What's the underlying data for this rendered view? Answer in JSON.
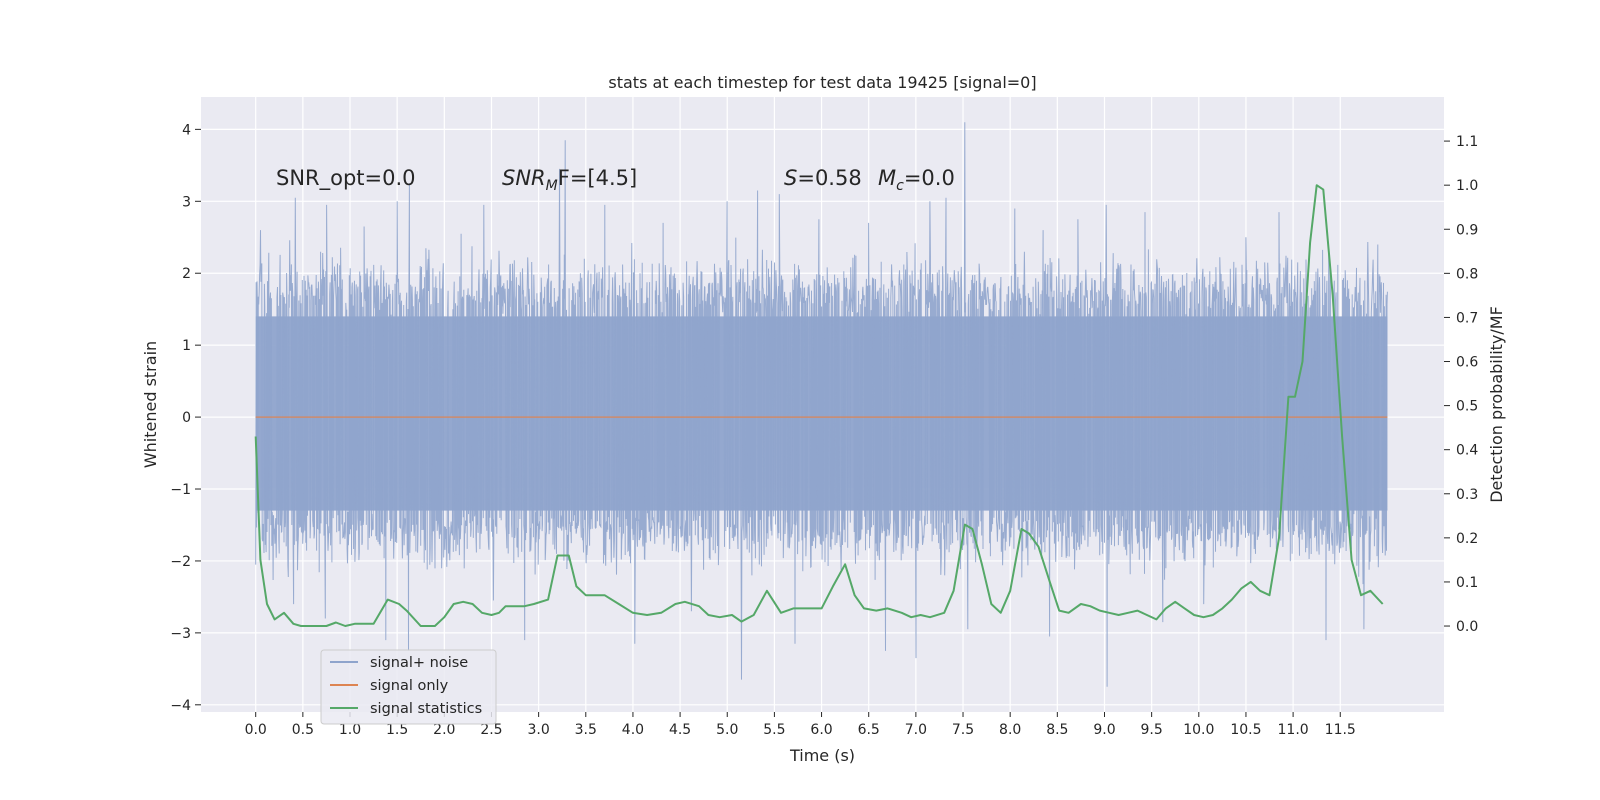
{
  "chart_data": {
    "type": "line",
    "title": "stats at each timestep for test data 19425 [signal=0]",
    "xlabel": "Time (s)",
    "ylabel": "Whitened strain",
    "ylabel_right": "Detection probability/MF",
    "xlim": [
      -0.58,
      12.6
    ],
    "ylim": [
      -4.1,
      4.45
    ],
    "ylim_right": [
      -0.195,
      1.2
    ],
    "x_ticks": [
      0.0,
      0.5,
      1.0,
      1.5,
      2.0,
      2.5,
      3.0,
      3.5,
      4.0,
      4.5,
      5.0,
      5.5,
      6.0,
      6.5,
      7.0,
      7.5,
      8.0,
      8.5,
      9.0,
      9.5,
      10.0,
      10.5,
      11.0,
      11.5
    ],
    "x_tick_labels": [
      "0.0",
      "0.5",
      "1.0",
      "1.5",
      "2.0",
      "2.5",
      "3.0",
      "3.5",
      "4.0",
      "4.5",
      "5.0",
      "5.5",
      "6.0",
      "6.5",
      "7.0",
      "7.5",
      "8.0",
      "8.5",
      "9.0",
      "9.5",
      "10.0",
      "10.5",
      "11.0",
      "11.5"
    ],
    "y_ticks": [
      -4,
      -3,
      -2,
      -1,
      0,
      1,
      2,
      3,
      4
    ],
    "y_tick_labels": [
      "−4",
      "−3",
      "−2",
      "−1",
      "0",
      "1",
      "2",
      "3",
      "4"
    ],
    "y_ticks_right": [
      0.0,
      0.1,
      0.2,
      0.3,
      0.4,
      0.5,
      0.6,
      0.7,
      0.8,
      0.9,
      1.0,
      1.1
    ],
    "y_tick_labels_right": [
      "0.0",
      "0.1",
      "0.2",
      "0.3",
      "0.4",
      "0.5",
      "0.6",
      "0.7",
      "0.8",
      "0.9",
      "1.0",
      "1.1"
    ],
    "grid": true,
    "legend_position": "lower-left",
    "annotations": {
      "snr_opt": "SNR_opt=0.0",
      "snr_mf_main": "SNR",
      "snr_mf_sub": "M",
      "snr_mf_tail": "F=[4.5]",
      "stat_s_main": "S",
      "stat_s_tail": "=0.58",
      "mc_main": "M",
      "mc_sub": "c",
      "mc_tail": "=0.0"
    },
    "series": [
      {
        "name": "signal+ noise",
        "axis": "left",
        "color": "#8fa4cc",
        "style": "dense-noise",
        "x_range": [
          0.0,
          12.0
        ],
        "band": [
          -1.3,
          1.4
        ],
        "spike_peaks": [
          {
            "x": 0.05,
            "y": 2.6
          },
          {
            "x": 0.42,
            "y": 3.05
          },
          {
            "x": 0.75,
            "y": 2.95
          },
          {
            "x": 1.15,
            "y": 2.65
          },
          {
            "x": 1.5,
            "y": 3.0
          },
          {
            "x": 1.63,
            "y": 3.25
          },
          {
            "x": 2.18,
            "y": 2.55
          },
          {
            "x": 2.42,
            "y": 2.95
          },
          {
            "x": 2.85,
            "y": 3.2
          },
          {
            "x": 3.22,
            "y": 3.45
          },
          {
            "x": 3.28,
            "y": 3.85
          },
          {
            "x": 3.7,
            "y": 2.95
          },
          {
            "x": 4.32,
            "y": 2.7
          },
          {
            "x": 5.0,
            "y": 3.0
          },
          {
            "x": 5.32,
            "y": 3.15
          },
          {
            "x": 5.55,
            "y": 3.1
          },
          {
            "x": 5.97,
            "y": 2.75
          },
          {
            "x": 6.5,
            "y": 2.7
          },
          {
            "x": 7.15,
            "y": 3.0
          },
          {
            "x": 7.32,
            "y": 3.05
          },
          {
            "x": 7.52,
            "y": 4.1
          },
          {
            "x": 8.05,
            "y": 2.9
          },
          {
            "x": 8.35,
            "y": 2.6
          },
          {
            "x": 8.72,
            "y": 2.75
          },
          {
            "x": 9.02,
            "y": 2.95
          },
          {
            "x": 9.43,
            "y": 2.85
          },
          {
            "x": 9.62,
            "y": 3.6
          },
          {
            "x": 10.05,
            "y": 2.65
          },
          {
            "x": 10.5,
            "y": 2.5
          },
          {
            "x": 10.85,
            "y": 2.85
          },
          {
            "x": 11.35,
            "y": 2.8
          },
          {
            "x": 11.75,
            "y": 2.95
          },
          {
            "x": 11.9,
            "y": 2.4
          }
        ],
        "trough_peaks": [
          {
            "x": 0.4,
            "y": -2.6
          },
          {
            "x": 0.74,
            "y": -2.8
          },
          {
            "x": 1.38,
            "y": -3.1
          },
          {
            "x": 1.62,
            "y": -3.25
          },
          {
            "x": 2.52,
            "y": -2.55
          },
          {
            "x": 2.85,
            "y": -3.1
          },
          {
            "x": 4.02,
            "y": -3.15
          },
          {
            "x": 4.62,
            "y": -2.7
          },
          {
            "x": 5.15,
            "y": -3.65
          },
          {
            "x": 5.72,
            "y": -3.15
          },
          {
            "x": 6.68,
            "y": -3.25
          },
          {
            "x": 7.0,
            "y": -3.35
          },
          {
            "x": 7.55,
            "y": -2.95
          },
          {
            "x": 8.42,
            "y": -3.05
          },
          {
            "x": 9.03,
            "y": -3.75
          },
          {
            "x": 9.62,
            "y": -2.85
          },
          {
            "x": 10.05,
            "y": -2.6
          },
          {
            "x": 11.35,
            "y": -3.1
          },
          {
            "x": 11.75,
            "y": -2.95
          }
        ]
      },
      {
        "name": "signal only",
        "axis": "left",
        "color": "#dd8452",
        "x": [
          0.0,
          12.0
        ],
        "y": [
          0.0,
          0.0
        ]
      },
      {
        "name": "signal statistics",
        "axis": "right",
        "color": "#55a868",
        "x": [
          0.0,
          0.05,
          0.12,
          0.2,
          0.3,
          0.4,
          0.48,
          0.6,
          0.75,
          0.85,
          0.95,
          1.05,
          1.15,
          1.25,
          1.4,
          1.52,
          1.6,
          1.75,
          1.9,
          2.0,
          2.1,
          2.2,
          2.3,
          2.4,
          2.5,
          2.58,
          2.65,
          2.75,
          2.85,
          2.95,
          3.1,
          3.2,
          3.32,
          3.4,
          3.5,
          3.6,
          3.7,
          3.85,
          4.0,
          4.15,
          4.3,
          4.45,
          4.55,
          4.7,
          4.8,
          4.92,
          5.05,
          5.15,
          5.28,
          5.42,
          5.57,
          5.7,
          5.85,
          6.0,
          6.12,
          6.25,
          6.35,
          6.45,
          6.58,
          6.7,
          6.85,
          6.95,
          7.05,
          7.15,
          7.3,
          7.4,
          7.52,
          7.6,
          7.7,
          7.8,
          7.9,
          8.0,
          8.12,
          8.2,
          8.3,
          8.42,
          8.52,
          8.62,
          8.75,
          8.85,
          8.95,
          9.05,
          9.15,
          9.25,
          9.35,
          9.45,
          9.55,
          9.65,
          9.75,
          9.85,
          9.95,
          10.05,
          10.15,
          10.25,
          10.35,
          10.45,
          10.55,
          10.65,
          10.75,
          10.85,
          10.95,
          11.02,
          11.1,
          11.18,
          11.25,
          11.32,
          11.42,
          11.52,
          11.62,
          11.72,
          11.82,
          11.95
        ],
        "y": [
          0.43,
          0.15,
          0.05,
          0.015,
          0.03,
          0.005,
          0.0,
          0.0,
          0.0,
          0.008,
          0.0,
          0.005,
          0.005,
          0.005,
          0.06,
          0.05,
          0.035,
          0.0,
          0.0,
          0.02,
          0.05,
          0.055,
          0.05,
          0.03,
          0.025,
          0.03,
          0.045,
          0.045,
          0.045,
          0.05,
          0.06,
          0.16,
          0.16,
          0.09,
          0.07,
          0.07,
          0.07,
          0.05,
          0.03,
          0.025,
          0.03,
          0.05,
          0.055,
          0.045,
          0.025,
          0.02,
          0.025,
          0.01,
          0.025,
          0.08,
          0.03,
          0.04,
          0.04,
          0.04,
          0.09,
          0.14,
          0.07,
          0.04,
          0.035,
          0.04,
          0.03,
          0.02,
          0.025,
          0.02,
          0.03,
          0.08,
          0.23,
          0.22,
          0.14,
          0.05,
          0.03,
          0.08,
          0.22,
          0.21,
          0.18,
          0.1,
          0.035,
          0.03,
          0.05,
          0.045,
          0.035,
          0.03,
          0.025,
          0.03,
          0.035,
          0.025,
          0.015,
          0.04,
          0.055,
          0.04,
          0.025,
          0.02,
          0.025,
          0.04,
          0.06,
          0.085,
          0.1,
          0.08,
          0.07,
          0.2,
          0.52,
          0.52,
          0.6,
          0.87,
          1.0,
          0.99,
          0.75,
          0.43,
          0.15,
          0.07,
          0.08,
          0.05
        ]
      }
    ]
  }
}
